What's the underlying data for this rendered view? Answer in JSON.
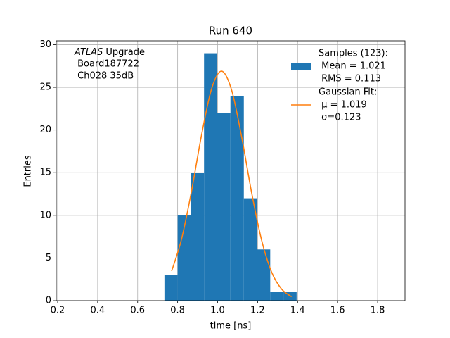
{
  "chart_data": {
    "type": "histogram",
    "title": "Run 640",
    "xlabel": "time [ns]",
    "ylabel": "Entries",
    "xlim": [
      0.193,
      1.937
    ],
    "ylim": [
      0,
      30.45
    ],
    "xticks": [
      0.2,
      0.4,
      0.6,
      0.8,
      {
        "value": 1,
        "label": "1.0"
      },
      1.2,
      1.4,
      1.6,
      1.8
    ],
    "yticks": [
      0,
      5,
      10,
      15,
      20,
      25,
      30
    ],
    "grid": true,
    "legend": "upper right",
    "annotation": [
      [
        {
          "text": "ATLAS",
          "italic": true
        },
        {
          "text": " Upgrade"
        }
      ],
      " Board187722",
      " Ch028 35dB"
    ],
    "series": [
      {
        "type": "histogram",
        "name": "Samples (123):",
        "details": [
          " Mean = 1.021",
          " RMS = 0.113"
        ],
        "color": "#1f77b4",
        "bins": [
          0.734,
          0.8,
          0.866,
          0.932,
          0.998,
          1.064,
          1.131,
          1.197,
          1.263,
          1.329,
          1.395
        ],
        "values": [
          3,
          10,
          15,
          29,
          22,
          24,
          12,
          6,
          1,
          1
        ]
      },
      {
        "type": "line",
        "name": "Gaussian Fit:",
        "details": [
          " μ = 1.019",
          " σ=0.123"
        ],
        "color": "#ff7f0e",
        "x": [
          0.77,
          0.82,
          0.87,
          0.92,
          0.97,
          1.02,
          1.07,
          1.12,
          1.17,
          1.22,
          1.27,
          1.32,
          1.37
        ],
        "values": [
          3.47,
          7.26,
          12.91,
          19.46,
          24.85,
          26.9,
          24.68,
          19.2,
          12.66,
          7.08,
          3.35,
          1.35,
          0.46
        ]
      }
    ]
  }
}
